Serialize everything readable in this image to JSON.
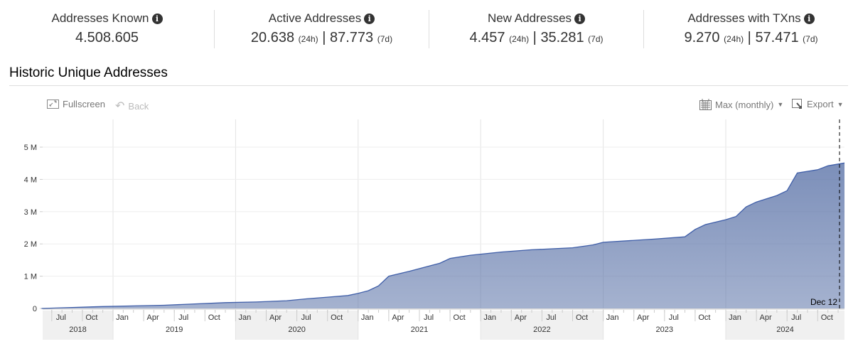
{
  "stats": [
    {
      "label": "Addresses Known",
      "value": "4.508.605"
    },
    {
      "label": "Active Addresses",
      "v24": "20.638",
      "v7": "87.773"
    },
    {
      "label": "New Addresses",
      "v24": "4.457",
      "v7": "35.281"
    },
    {
      "label": "Addresses with TXns",
      "v24": "9.270",
      "v7": "57.471"
    }
  ],
  "suffix_24h": "(24h)",
  "suffix_7d": "(7d)",
  "separator": "|",
  "info_glyph": "i",
  "section_title": "Historic Unique Addresses",
  "toolbar": {
    "fullscreen": "Fullscreen",
    "back": "Back",
    "range": "Max (monthly)",
    "export": "Export"
  },
  "chart_data": {
    "type": "area",
    "title": "Historic Unique Addresses",
    "ylabel": "",
    "xlabel": "",
    "ylim": [
      0,
      5000000
    ],
    "yticks": [
      {
        "v": 0,
        "label": "0"
      },
      {
        "v": 1000000,
        "label": "1 M"
      },
      {
        "v": 2000000,
        "label": "2 M"
      },
      {
        "v": 3000000,
        "label": "3 M"
      },
      {
        "v": 4000000,
        "label": "4 M"
      },
      {
        "v": 5000000,
        "label": "5 M"
      }
    ],
    "years": [
      "2018",
      "2019",
      "2020",
      "2021",
      "2022",
      "2023",
      "2024"
    ],
    "month_labels": {
      "1": "Jan",
      "4": "Apr",
      "7": "Jul",
      "10": "Oct"
    },
    "crosshair_label": "Dec 12",
    "color": "#5b73a8",
    "points": [
      [
        "2018-06",
        0
      ],
      [
        "2018-09",
        30000
      ],
      [
        "2018-12",
        60000
      ],
      [
        "2019-06",
        100000
      ],
      [
        "2019-12",
        180000
      ],
      [
        "2020-03",
        200000
      ],
      [
        "2020-06",
        240000
      ],
      [
        "2020-08",
        300000
      ],
      [
        "2020-10",
        350000
      ],
      [
        "2020-12",
        400000
      ],
      [
        "2021-01",
        470000
      ],
      [
        "2021-02",
        550000
      ],
      [
        "2021-03",
        700000
      ],
      [
        "2021-04",
        1000000
      ],
      [
        "2021-06",
        1150000
      ],
      [
        "2021-08",
        1320000
      ],
      [
        "2021-09",
        1400000
      ],
      [
        "2021-10",
        1550000
      ],
      [
        "2021-12",
        1650000
      ],
      [
        "2022-03",
        1750000
      ],
      [
        "2022-06",
        1820000
      ],
      [
        "2022-10",
        1880000
      ],
      [
        "2022-12",
        1970000
      ],
      [
        "2023-01",
        2050000
      ],
      [
        "2023-06",
        2150000
      ],
      [
        "2023-09",
        2220000
      ],
      [
        "2023-10",
        2450000
      ],
      [
        "2023-11",
        2600000
      ],
      [
        "2024-01",
        2750000
      ],
      [
        "2024-02",
        2850000
      ],
      [
        "2024-03",
        3150000
      ],
      [
        "2024-04",
        3300000
      ],
      [
        "2024-06",
        3500000
      ],
      [
        "2024-07",
        3650000
      ],
      [
        "2024-08",
        4200000
      ],
      [
        "2024-10",
        4300000
      ],
      [
        "2024-11",
        4420000
      ],
      [
        "2024-12",
        4508605
      ]
    ]
  }
}
